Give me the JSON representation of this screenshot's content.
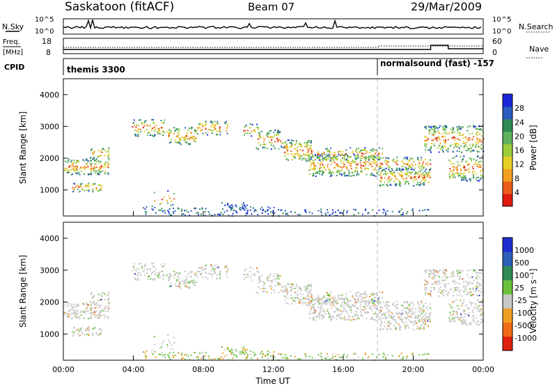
{
  "header": {
    "station": "Saskatoon (fitACF)",
    "beam": "Beam 07",
    "date": "29/Mar/2009"
  },
  "sky_panel": {
    "left_label": "N.Sky",
    "right_label": "N.Search",
    "ticks_left": [
      "10^5",
      "10^0"
    ],
    "ticks_right": [
      "10^5",
      "10^0"
    ]
  },
  "freq_panel": {
    "left_label_1": "Freq.",
    "left_label_2": "[MHz]",
    "right_label": "Nave",
    "ticks_left": [
      "18",
      "8"
    ],
    "ticks_right": [
      "60",
      "0"
    ]
  },
  "cpid_panel": {
    "label": "CPID",
    "segments": [
      {
        "text": "themis 3300",
        "start_hour": 0
      },
      {
        "text": "normalsound (fast) -157",
        "start_hour": 18
      }
    ]
  },
  "chart_data": [
    {
      "type": "heatmap",
      "title": "",
      "xlabel": "",
      "ylabel": "Slant Range [km]",
      "x_range": [
        "00:00",
        "24:00"
      ],
      "ylim": [
        180,
        4500
      ],
      "y_ticks": [
        1000,
        2000,
        3000,
        4000
      ],
      "colorbar": {
        "label": "Power [dB]",
        "ticks": [
          4,
          8,
          12,
          16,
          20,
          24,
          28
        ],
        "range": [
          0,
          30
        ],
        "colors": [
          "#1a27d8",
          "#2b5cc0",
          "#2f8a55",
          "#5fb25b",
          "#9ccc3a",
          "#e7cf25",
          "#f49f22",
          "#ec5c1b",
          "#e01b12"
        ]
      }
    },
    {
      "type": "heatmap",
      "title": "",
      "xlabel": "Time UT",
      "ylabel": "Slant Range [km]",
      "x_range": [
        "00:00",
        "24:00"
      ],
      "x_ticks": [
        "00:00",
        "04:00",
        "08:00",
        "12:00",
        "16:00",
        "20:00",
        "00:00"
      ],
      "ylim": [
        180,
        4500
      ],
      "y_ticks": [
        1000,
        2000,
        3000,
        4000
      ],
      "colorbar": {
        "label": "Velocity [m s⁻¹]",
        "ticks": [
          "1000",
          "500",
          "100",
          "25",
          "-25",
          "-100",
          "-500",
          "-1000"
        ],
        "colors": [
          "#1e2fd0",
          "#2c5fb8",
          "#2f8a55",
          "#68c23c",
          "#c8c8c8",
          "#f0a020",
          "#ef6a15",
          "#e02010"
        ]
      }
    }
  ],
  "scatter_regions": [
    {
      "t0": 0.0,
      "t1": 2.6,
      "r0": 1500,
      "r1": 2000,
      "density": 0.85
    },
    {
      "t0": 0.5,
      "t1": 2.2,
      "r0": 950,
      "r1": 1250,
      "density": 0.7
    },
    {
      "t0": 1.5,
      "t1": 2.6,
      "r0": 2000,
      "r1": 2350,
      "density": 0.6
    },
    {
      "t0": 3.9,
      "t1": 5.8,
      "r0": 2700,
      "r1": 3250,
      "density": 0.55
    },
    {
      "t0": 5.8,
      "t1": 7.6,
      "r0": 2450,
      "r1": 3000,
      "density": 0.65
    },
    {
      "t0": 7.6,
      "t1": 9.4,
      "r0": 2750,
      "r1": 3200,
      "density": 0.55
    },
    {
      "t0": 10.2,
      "t1": 11.2,
      "r0": 2700,
      "r1": 3100,
      "density": 0.45
    },
    {
      "t0": 11.0,
      "t1": 12.6,
      "r0": 2300,
      "r1": 2900,
      "density": 0.55
    },
    {
      "t0": 12.6,
      "t1": 14.2,
      "r0": 1900,
      "r1": 2600,
      "density": 0.75
    },
    {
      "t0": 14.0,
      "t1": 18.0,
      "r0": 1450,
      "r1": 2150,
      "density": 0.75
    },
    {
      "t0": 14.5,
      "t1": 18.2,
      "r0": 1950,
      "r1": 2350,
      "density": 0.55
    },
    {
      "t0": 18.0,
      "t1": 21.0,
      "r0": 1150,
      "r1": 1700,
      "density": 0.8
    },
    {
      "t0": 18.0,
      "t1": 21.0,
      "r0": 1650,
      "r1": 2050,
      "density": 0.6
    },
    {
      "t0": 20.6,
      "t1": 24.0,
      "r0": 2200,
      "r1": 3050,
      "density": 0.65
    },
    {
      "t0": 22.0,
      "t1": 24.0,
      "r0": 1300,
      "r1": 2100,
      "density": 0.6
    },
    {
      "t0": 4.5,
      "t1": 12.0,
      "r0": 200,
      "r1": 500,
      "density": 0.35
    },
    {
      "t0": 12.0,
      "t1": 21.0,
      "r0": 200,
      "r1": 420,
      "density": 0.3
    },
    {
      "t0": 9.0,
      "t1": 10.5,
      "r0": 380,
      "r1": 620,
      "density": 0.55
    },
    {
      "t0": 5.0,
      "t1": 6.3,
      "r0": 500,
      "r1": 1000,
      "density": 0.2
    }
  ]
}
